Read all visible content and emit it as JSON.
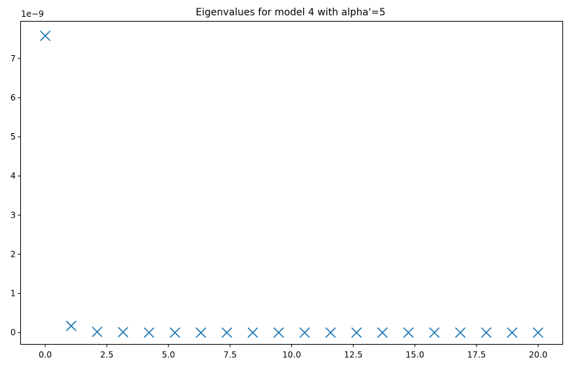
{
  "chart_data": {
    "type": "scatter",
    "title": "Eigenvalues for model 4 with alpha'=5",
    "xlabel": "",
    "ylabel": "",
    "y_offset_label": "1e−9",
    "xlim": [
      -1.0,
      21.0
    ],
    "ylim": [
      -0.3,
      7.95
    ],
    "x_ticks": [
      0.0,
      2.5,
      5.0,
      7.5,
      10.0,
      12.5,
      15.0,
      17.5,
      20.0
    ],
    "x_tick_labels": [
      "0.0",
      "2.5",
      "5.0",
      "7.5",
      "10.0",
      "12.5",
      "15.0",
      "17.5",
      "20.0"
    ],
    "y_ticks": [
      0,
      1,
      2,
      3,
      4,
      5,
      6,
      7
    ],
    "y_tick_labels": [
      "0",
      "1",
      "2",
      "3",
      "4",
      "5",
      "6",
      "7"
    ],
    "grid": false,
    "marker": "x",
    "color": "#1f77b4",
    "x": [
      0.0,
      1.0526,
      2.1053,
      3.1579,
      4.2105,
      5.2632,
      6.3158,
      7.3684,
      8.4211,
      9.4737,
      10.5263,
      11.5789,
      12.6316,
      13.6842,
      14.7368,
      15.7895,
      16.8421,
      17.8947,
      18.9474,
      20.0
    ],
    "y": [
      7.58,
      0.17,
      0.02,
      0.01,
      0.0,
      0.0,
      0.0,
      0.0,
      0.0,
      0.0,
      0.0,
      0.0,
      0.0,
      0.0,
      0.0,
      0.0,
      0.0,
      0.0,
      0.0,
      0.0
    ]
  }
}
